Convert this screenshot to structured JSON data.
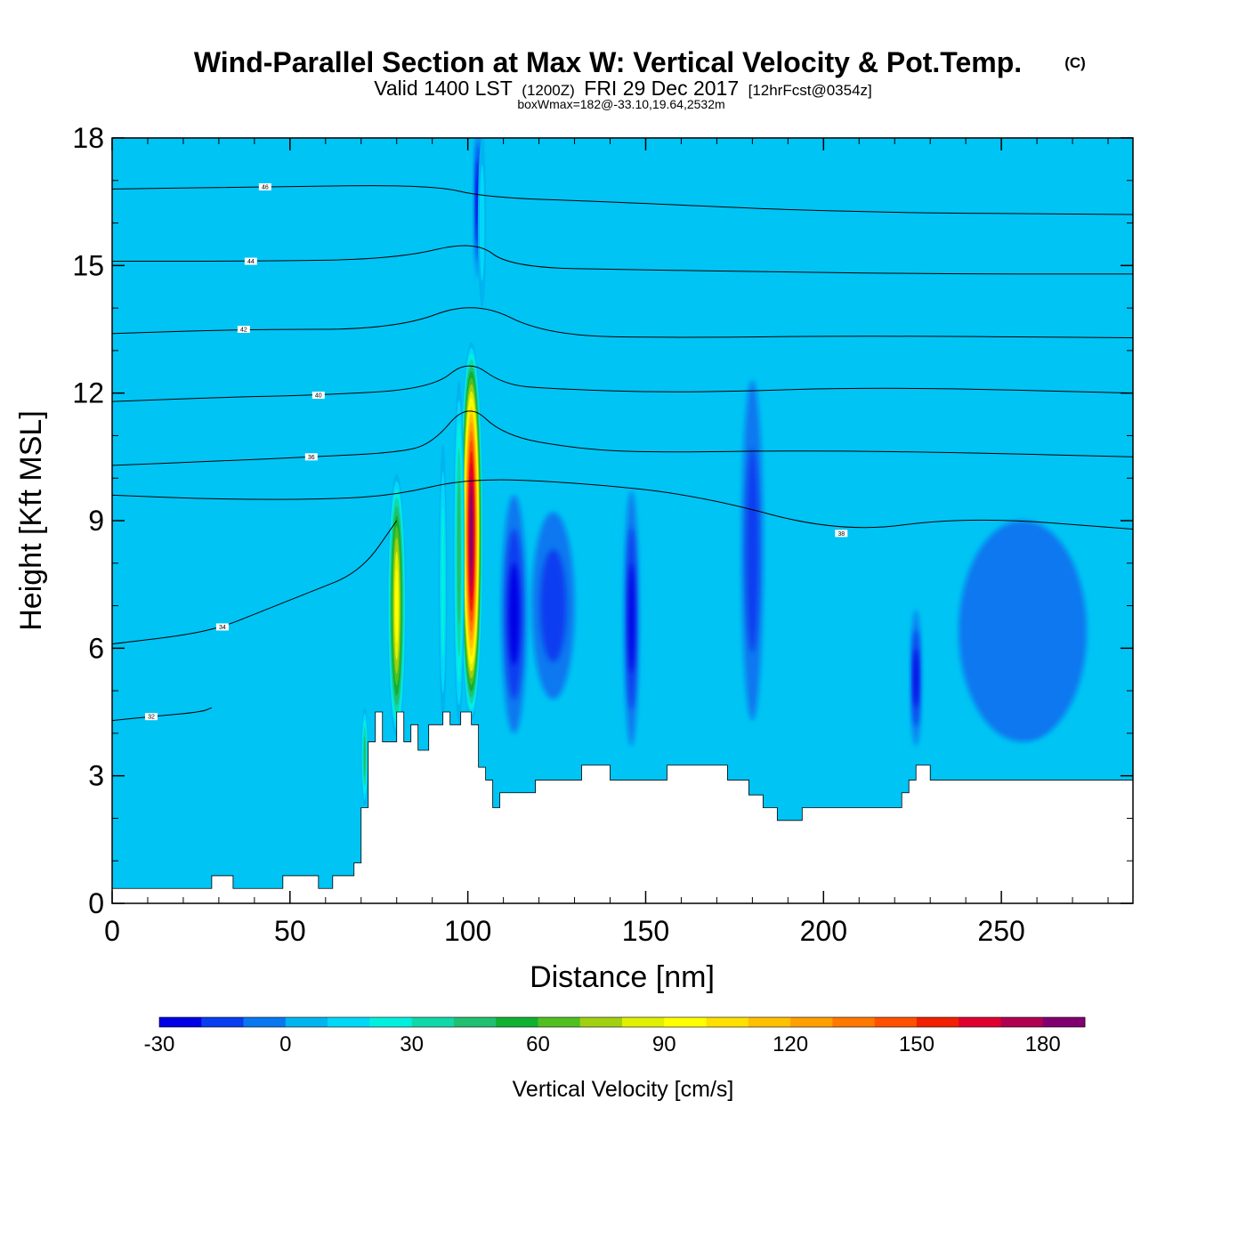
{
  "title": {
    "main": "Wind-Parallel Section at Max W: Vertical Velocity & Pot.Temp.",
    "copyright": "(C)",
    "valid_prefix": "Valid 1400 LST",
    "valid_zulu": "(1200Z)",
    "valid_date": "FRI 29 Dec 2017",
    "forecast": "[12hrFcst@0354z]",
    "boxwmax": "boxWmax=182@-33.10,19.64,2532m"
  },
  "chart_data": {
    "type": "heatmap",
    "xlabel": "Distance [nm]",
    "ylabel": "Height [Kft MSL]",
    "xlim": [
      0,
      287
    ],
    "ylim": [
      0,
      18
    ],
    "x_ticks": [
      0,
      50,
      100,
      150,
      200,
      250
    ],
    "x_tick_labels": [
      "0",
      "50",
      "100",
      "150",
      "200",
      "250"
    ],
    "y_ticks": [
      0,
      3,
      6,
      9,
      12,
      15,
      18
    ],
    "y_tick_labels": [
      "0",
      "3",
      "6",
      "9",
      "12",
      "15",
      "18"
    ],
    "terrain": {
      "x": [
        0,
        28,
        28,
        34,
        34,
        38,
        38,
        48,
        48,
        52,
        52,
        58,
        58,
        62,
        62,
        68,
        68,
        70,
        70,
        72,
        72,
        74,
        74,
        76,
        76,
        80,
        80,
        82,
        82,
        84,
        84,
        86,
        86,
        89,
        89,
        93,
        93,
        95,
        95,
        98,
        98,
        101,
        101,
        103,
        103,
        105,
        105,
        107,
        107,
        109,
        109,
        119,
        119,
        132,
        132,
        136,
        136,
        140,
        140,
        156,
        156,
        173,
        173,
        179,
        179,
        183,
        183,
        187,
        187,
        194,
        194,
        222,
        222,
        224,
        224,
        226,
        226,
        228,
        228,
        230,
        230,
        275,
        275,
        287
      ],
      "y": [
        0.35,
        0.35,
        0.65,
        0.65,
        0.35,
        0.35,
        0.35,
        0.35,
        0.65,
        0.65,
        0.65,
        0.65,
        0.35,
        0.35,
        0.65,
        0.65,
        0.95,
        0.95,
        2.25,
        2.25,
        3.8,
        3.8,
        4.5,
        4.5,
        3.8,
        3.8,
        4.5,
        4.5,
        3.8,
        3.8,
        4.2,
        4.2,
        3.6,
        3.6,
        4.2,
        4.2,
        4.5,
        4.5,
        4.2,
        4.2,
        4.5,
        4.5,
        4.2,
        4.2,
        3.2,
        3.2,
        2.9,
        2.9,
        2.25,
        2.25,
        2.6,
        2.6,
        2.9,
        2.9,
        3.25,
        3.25,
        3.25,
        3.25,
        2.9,
        2.9,
        3.25,
        3.25,
        2.9,
        2.9,
        2.55,
        2.55,
        2.25,
        2.25,
        1.95,
        1.95,
        2.25,
        2.25,
        2.6,
        2.6,
        2.9,
        2.9,
        3.25,
        3.25,
        3.25,
        3.25,
        2.9,
        2.9,
        2.9,
        2.9
      ]
    },
    "updraft_cores": [
      {
        "x": 101,
        "y_bottom": 4.3,
        "y_top": 13.2,
        "half_width": 3.3,
        "peak": 182
      },
      {
        "x": 80,
        "y_bottom": 3.9,
        "y_top": 10.1,
        "half_width": 2.6,
        "peak": 95
      },
      {
        "x": 97.5,
        "y_bottom": 4.2,
        "y_top": 12.3,
        "half_width": 1.6,
        "peak": 45
      },
      {
        "x": 93,
        "y_bottom": 4.3,
        "y_top": 10.8,
        "half_width": 1.2,
        "peak": 20
      },
      {
        "x": 71,
        "y_bottom": 2.3,
        "y_top": 4.6,
        "half_width": 1.0,
        "peak": 45
      },
      {
        "x": 104,
        "y_bottom": 14.0,
        "y_top": 18.0,
        "half_width": 1.2,
        "peak": 12
      }
    ],
    "downdraft_regions": [
      {
        "x": 113,
        "y": 6.8,
        "rx": 3.5,
        "ry": 2.8,
        "value": -20
      },
      {
        "x": 124,
        "y": 7.0,
        "rx": 6,
        "ry": 2.2,
        "value": -10
      },
      {
        "x": 146,
        "y": 6.7,
        "rx": 2,
        "ry": 3,
        "value": -22
      },
      {
        "x": 258,
        "y": 5.6,
        "rx": 10,
        "ry": 1.7,
        "value": -24
      },
      {
        "x": 256,
        "y": 6.4,
        "rx": 18,
        "ry": 2.6,
        "value": -8
      },
      {
        "x": 180,
        "y": 8.3,
        "rx": 3,
        "ry": 4,
        "value": -18
      },
      {
        "x": 226,
        "y": 5.3,
        "rx": 1.4,
        "ry": 1.6,
        "value": -22
      },
      {
        "x": 103,
        "y": 16.5,
        "rx": 1.0,
        "ry": 1.8,
        "value": -30
      }
    ],
    "theta_contours": [
      {
        "label": "32",
        "label_x": 11,
        "points": [
          [
            0,
            4.3
          ],
          [
            12,
            4.4
          ],
          [
            25,
            4.5
          ],
          [
            28,
            4.6
          ]
        ]
      },
      {
        "label": "34",
        "label_x": 31,
        "points": [
          [
            0,
            6.1
          ],
          [
            20,
            6.3
          ],
          [
            31,
            6.5
          ],
          [
            40,
            6.8
          ],
          [
            55,
            7.3
          ],
          [
            70,
            7.8
          ],
          [
            80,
            9.0
          ]
        ]
      },
      {
        "label": "36",
        "label_x": 56,
        "points": [
          [
            0,
            10.3
          ],
          [
            30,
            10.4
          ],
          [
            56,
            10.5
          ],
          [
            80,
            10.6
          ],
          [
            90,
            10.8
          ],
          [
            100,
            11.8
          ],
          [
            110,
            11.0
          ],
          [
            130,
            10.7
          ],
          [
            150,
            10.6
          ],
          [
            194,
            10.65
          ],
          [
            240,
            10.6
          ],
          [
            287,
            10.5
          ]
        ]
      },
      {
        "label": "38",
        "label_x": 205,
        "points": [
          [
            0,
            9.6
          ],
          [
            30,
            9.5
          ],
          [
            60,
            9.5
          ],
          [
            80,
            9.6
          ],
          [
            100,
            10.0
          ],
          [
            130,
            9.9
          ],
          [
            165,
            9.6
          ],
          [
            205,
            8.7
          ],
          [
            240,
            9.1
          ],
          [
            287,
            8.8
          ]
        ]
      },
      {
        "label": "40",
        "label_x": 58,
        "points": [
          [
            0,
            11.8
          ],
          [
            30,
            11.9
          ],
          [
            58,
            11.95
          ],
          [
            90,
            12.1
          ],
          [
            100,
            12.8
          ],
          [
            110,
            12.2
          ],
          [
            123,
            12.1
          ],
          [
            160,
            12.0
          ],
          [
            216,
            12.15
          ],
          [
            287,
            12.0
          ]
        ]
      },
      {
        "label": "42",
        "label_x": 37,
        "points": [
          [
            0,
            13.4
          ],
          [
            37,
            13.5
          ],
          [
            80,
            13.5
          ],
          [
            102,
            14.2
          ],
          [
            122,
            13.35
          ],
          [
            160,
            13.3
          ],
          [
            210,
            13.35
          ],
          [
            287,
            13.3
          ]
        ]
      },
      {
        "label": "44",
        "label_x": 39,
        "points": [
          [
            0,
            15.1
          ],
          [
            39,
            15.1
          ],
          [
            80,
            15.15
          ],
          [
            102,
            15.6
          ],
          [
            112,
            14.95
          ],
          [
            150,
            14.9
          ],
          [
            183,
            14.85
          ],
          [
            240,
            14.8
          ],
          [
            287,
            14.8
          ]
        ]
      },
      {
        "label": "46",
        "label_x": 43,
        "points": [
          [
            0,
            16.8
          ],
          [
            43,
            16.85
          ],
          [
            90,
            16.9
          ],
          [
            105,
            16.6
          ],
          [
            140,
            16.5
          ],
          [
            205,
            16.25
          ],
          [
            287,
            16.2
          ]
        ]
      }
    ],
    "colorbar": {
      "label": "Vertical Velocity [cm/s]",
      "ticks": [
        -30,
        0,
        30,
        60,
        90,
        120,
        150,
        180
      ],
      "tick_labels": [
        "-30",
        "0",
        "30",
        "60",
        "90",
        "120",
        "150",
        "180"
      ],
      "range": [
        -30,
        190
      ],
      "step": 10,
      "colors": [
        "#0000e6",
        "#0a3cf0",
        "#0878f0",
        "#00b4f0",
        "#00d8f8",
        "#00f0e0",
        "#10d8a8",
        "#20c070",
        "#10b030",
        "#50c020",
        "#a0d010",
        "#e0f000",
        "#ffff00",
        "#ffe000",
        "#ffc000",
        "#ffa000",
        "#ff7800",
        "#ff5000",
        "#f02000",
        "#e00030",
        "#b00050",
        "#800070"
      ]
    }
  }
}
